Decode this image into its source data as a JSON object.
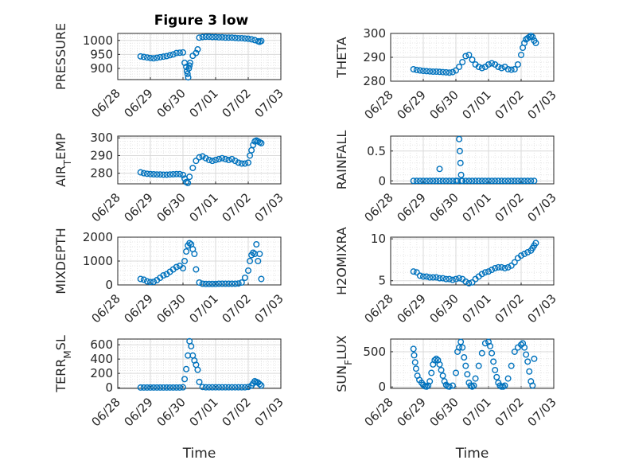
{
  "title": "Figure 3 low",
  "marker_color": "#0072BD",
  "chart_data": [
    {
      "type": "scatter",
      "ylabel": "PRESSURE",
      "xlabel": "",
      "ylim": [
        860,
        1025
      ],
      "yticks": [
        900,
        950,
        1000
      ],
      "ytick_labels": [
        "900",
        "950",
        "1000"
      ],
      "xlim": [
        0,
        5
      ],
      "xticks": [
        0,
        1,
        2,
        3,
        4,
        5
      ],
      "xtick_labels": [
        "06/28",
        "06/29",
        "06/30",
        "07/01",
        "07/02",
        "07/03"
      ],
      "x": [
        0.7,
        0.8,
        0.9,
        1.0,
        1.1,
        1.2,
        1.3,
        1.4,
        1.5,
        1.6,
        1.7,
        1.8,
        1.9,
        2.0,
        2.05,
        2.1,
        2.12,
        2.14,
        2.16,
        2.18,
        2.2,
        2.22,
        2.3,
        2.4,
        2.45,
        2.5,
        2.6,
        2.7,
        2.8,
        2.9,
        3.0,
        3.1,
        3.2,
        3.3,
        3.4,
        3.5,
        3.6,
        3.7,
        3.8,
        3.9,
        4.0,
        4.1,
        4.2,
        4.3,
        4.35,
        4.4
      ],
      "y": [
        943,
        941,
        939,
        937,
        936,
        938,
        940,
        942,
        944,
        947,
        950,
        955,
        956,
        957,
        920,
        905,
        890,
        880,
        868,
        900,
        910,
        920,
        945,
        955,
        968,
        1010,
        1012,
        1013,
        1013,
        1012,
        1012,
        1011,
        1011,
        1010,
        1010,
        1010,
        1009,
        1008,
        1008,
        1007,
        1006,
        1004,
        1001,
        997,
        995,
        998
      ]
    },
    {
      "type": "scatter",
      "ylabel": "THETA",
      "xlabel": "",
      "ylim": [
        280,
        300
      ],
      "yticks": [
        280,
        290,
        300
      ],
      "ytick_labels": [
        "280",
        "290",
        "300"
      ],
      "xlim": [
        0,
        5
      ],
      "xticks": [
        0,
        1,
        2,
        3,
        4,
        5
      ],
      "xtick_labels": [
        "06/28",
        "06/29",
        "06/30",
        "07/01",
        "07/02",
        "07/03"
      ],
      "x": [
        0.7,
        0.8,
        0.9,
        1.0,
        1.1,
        1.2,
        1.3,
        1.4,
        1.5,
        1.6,
        1.7,
        1.8,
        1.9,
        2.0,
        2.1,
        2.2,
        2.3,
        2.4,
        2.5,
        2.6,
        2.7,
        2.8,
        2.9,
        3.0,
        3.1,
        3.2,
        3.3,
        3.4,
        3.5,
        3.6,
        3.7,
        3.8,
        3.9,
        4.0,
        4.05,
        4.1,
        4.15,
        4.2,
        4.25,
        4.3,
        4.35,
        4.4,
        4.45
      ],
      "y": [
        285,
        284.7,
        284.5,
        284.3,
        284.2,
        284.1,
        284,
        284,
        283.9,
        283.8,
        283.7,
        283.6,
        283.8,
        284.5,
        286,
        288,
        290.5,
        291,
        289,
        287,
        286,
        285.5,
        286,
        287,
        287.5,
        287,
        286,
        285.5,
        286,
        285,
        284.8,
        285,
        287,
        291,
        294,
        296,
        297.5,
        298,
        298.5,
        299,
        298.5,
        297,
        296
      ]
    },
    {
      "type": "scatter",
      "ylabel": "AIR_TEMP",
      "xlabel": "",
      "ylim": [
        274,
        301
      ],
      "yticks": [
        280,
        290,
        300
      ],
      "ytick_labels": [
        "280",
        "290",
        "300"
      ],
      "xlim": [
        0,
        5
      ],
      "xticks": [
        0,
        1,
        2,
        3,
        4,
        5
      ],
      "xtick_labels": [
        "06/28",
        "06/29",
        "06/30",
        "07/01",
        "07/02",
        "07/03"
      ],
      "x": [
        0.7,
        0.8,
        0.9,
        1.0,
        1.1,
        1.2,
        1.3,
        1.4,
        1.5,
        1.6,
        1.7,
        1.8,
        1.9,
        2.0,
        2.05,
        2.1,
        2.15,
        2.2,
        2.3,
        2.4,
        2.5,
        2.6,
        2.7,
        2.8,
        2.9,
        3.0,
        3.1,
        3.2,
        3.3,
        3.4,
        3.5,
        3.6,
        3.7,
        3.8,
        3.9,
        4.0,
        4.05,
        4.1,
        4.15,
        4.2,
        4.25,
        4.3,
        4.35,
        4.4
      ],
      "y": [
        280.5,
        280,
        279.7,
        279.5,
        279.4,
        279.3,
        279.3,
        279.2,
        279.2,
        279.3,
        279.4,
        279.5,
        279.5,
        279,
        277,
        275,
        274.5,
        278,
        283,
        287,
        289,
        289.5,
        288.5,
        287.5,
        287,
        287.5,
        288,
        288.5,
        288,
        287.5,
        288,
        287,
        286,
        285.5,
        285.5,
        286,
        290,
        293,
        296,
        298,
        298.5,
        298,
        297.5,
        297
      ]
    },
    {
      "type": "scatter",
      "ylabel": "RAINFALL",
      "xlabel": "",
      "ylim": [
        -0.05,
        0.75
      ],
      "yticks": [
        0,
        0.5
      ],
      "ytick_labels": [
        "0",
        "0.5"
      ],
      "xlim": [
        0,
        5
      ],
      "xticks": [
        0,
        1,
        2,
        3,
        4,
        5
      ],
      "xtick_labels": [
        "06/28",
        "06/29",
        "06/30",
        "07/01",
        "07/02",
        "07/03"
      ],
      "x": [
        0.7,
        0.8,
        0.9,
        1.0,
        1.1,
        1.2,
        1.3,
        1.4,
        1.5,
        1.6,
        1.7,
        1.8,
        1.9,
        2.0,
        2.05,
        2.1,
        2.12,
        2.14,
        2.16,
        2.18,
        2.2,
        2.3,
        2.4,
        2.5,
        2.6,
        2.7,
        2.8,
        2.9,
        3.0,
        3.1,
        3.2,
        3.3,
        3.4,
        3.5,
        3.6,
        3.7,
        3.8,
        3.9,
        4.0,
        4.1,
        4.2,
        4.3,
        4.4,
        1.5
      ],
      "y": [
        0,
        0,
        0,
        0,
        0,
        0,
        0,
        0,
        0,
        0,
        0,
        0,
        0,
        0,
        0,
        0.7,
        0.5,
        0.3,
        0.1,
        0,
        0,
        0,
        0,
        0,
        0,
        0,
        0,
        0,
        0,
        0,
        0,
        0,
        0,
        0,
        0,
        0,
        0,
        0,
        0,
        0,
        0,
        0,
        0,
        0.2
      ]
    },
    {
      "type": "scatter",
      "ylabel": "MIXDEPTH",
      "xlabel": "",
      "ylim": [
        0,
        2000
      ],
      "yticks": [
        0,
        1000,
        2000
      ],
      "ytick_labels": [
        "0",
        "1000",
        "2000"
      ],
      "xlim": [
        0,
        5
      ],
      "xticks": [
        0,
        1,
        2,
        3,
        4,
        5
      ],
      "xtick_labels": [
        "06/28",
        "06/29",
        "06/30",
        "07/01",
        "07/02",
        "07/03"
      ],
      "x": [
        0.7,
        0.8,
        0.9,
        1.0,
        1.1,
        1.2,
        1.3,
        1.4,
        1.5,
        1.6,
        1.7,
        1.8,
        1.9,
        2.0,
        2.05,
        2.1,
        2.15,
        2.2,
        2.25,
        2.3,
        2.35,
        2.4,
        2.5,
        2.6,
        2.7,
        2.8,
        2.9,
        3.0,
        3.1,
        3.2,
        3.3,
        3.4,
        3.5,
        3.6,
        3.7,
        3.8,
        3.9,
        4.0,
        4.05,
        4.1,
        4.15,
        4.2,
        4.25,
        4.3,
        4.35,
        4.4
      ],
      "y": [
        250,
        220,
        150,
        120,
        130,
        200,
        300,
        400,
        450,
        550,
        650,
        750,
        800,
        700,
        1000,
        1400,
        1650,
        1750,
        1700,
        1500,
        1300,
        650,
        100,
        50,
        40,
        40,
        40,
        40,
        50,
        50,
        50,
        50,
        50,
        50,
        60,
        100,
        300,
        600,
        1000,
        1250,
        1350,
        1300,
        1700,
        1000,
        1300,
        250
      ]
    },
    {
      "type": "scatter",
      "ylabel": "H2OMIXRA",
      "xlabel": "",
      "ylim": [
        4.5,
        10.2
      ],
      "yticks": [
        5,
        10
      ],
      "ytick_labels": [
        "5",
        "10"
      ],
      "xlim": [
        0,
        5
      ],
      "xticks": [
        0,
        1,
        2,
        3,
        4,
        5
      ],
      "xtick_labels": [
        "06/28",
        "06/29",
        "06/30",
        "07/01",
        "07/02",
        "07/03"
      ],
      "x": [
        0.7,
        0.8,
        0.9,
        1.0,
        1.1,
        1.2,
        1.3,
        1.4,
        1.5,
        1.6,
        1.7,
        1.8,
        1.9,
        2.0,
        2.1,
        2.2,
        2.3,
        2.4,
        2.5,
        2.6,
        2.7,
        2.8,
        2.9,
        3.0,
        3.1,
        3.2,
        3.3,
        3.4,
        3.5,
        3.6,
        3.7,
        3.8,
        3.9,
        4.0,
        4.1,
        4.2,
        4.3,
        4.35,
        4.4,
        4.45
      ],
      "y": [
        6.1,
        6,
        5.6,
        5.5,
        5.5,
        5.4,
        5.4,
        5.4,
        5.3,
        5.3,
        5.2,
        5.2,
        5.1,
        5.2,
        5.3,
        5.2,
        4.9,
        4.7,
        4.8,
        5.2,
        5.5,
        5.8,
        6,
        6.1,
        6.3,
        6.5,
        6.6,
        6.6,
        6.5,
        6.6,
        6.8,
        7.2,
        7.7,
        8,
        8.2,
        8.4,
        8.6,
        8.9,
        9.2,
        9.5
      ]
    },
    {
      "type": "scatter",
      "ylabel": "TERR_MSL",
      "xlabel": "Time",
      "ylim": [
        -10,
        680
      ],
      "yticks": [
        0,
        200,
        400,
        600
      ],
      "ytick_labels": [
        "0",
        "200",
        "400",
        "600"
      ],
      "xlim": [
        0,
        5
      ],
      "xticks": [
        0,
        1,
        2,
        3,
        4,
        5
      ],
      "xtick_labels": [
        "06/28",
        "06/29",
        "06/30",
        "07/01",
        "07/02",
        "07/03"
      ],
      "x": [
        0.7,
        0.8,
        0.9,
        1.0,
        1.1,
        1.2,
        1.3,
        1.4,
        1.5,
        1.6,
        1.7,
        1.8,
        1.9,
        2.0,
        2.05,
        2.1,
        2.15,
        2.2,
        2.25,
        2.3,
        2.35,
        2.4,
        2.45,
        2.5,
        2.6,
        2.7,
        2.8,
        2.9,
        3.0,
        3.1,
        3.2,
        3.3,
        3.4,
        3.5,
        3.6,
        3.7,
        3.8,
        3.9,
        4.0,
        4.1,
        4.15,
        4.2,
        4.25,
        4.3,
        4.35,
        4.4
      ],
      "y": [
        2,
        2,
        2,
        2,
        2,
        2,
        2,
        2,
        2,
        2,
        2,
        2,
        2,
        5,
        120,
        260,
        450,
        650,
        580,
        450,
        380,
        320,
        250,
        80,
        10,
        5,
        5,
        5,
        5,
        5,
        5,
        5,
        5,
        5,
        5,
        5,
        5,
        5,
        10,
        30,
        60,
        90,
        80,
        70,
        50,
        30
      ]
    },
    {
      "type": "scatter",
      "ylabel": "SUN_FLUX",
      "xlabel": "Time",
      "ylim": [
        -20,
        680
      ],
      "yticks": [
        0,
        500
      ],
      "ytick_labels": [
        "0",
        "500"
      ],
      "xlim": [
        0,
        5
      ],
      "xticks": [
        0,
        1,
        2,
        3,
        4,
        5
      ],
      "xtick_labels": [
        "06/28",
        "06/29",
        "06/30",
        "07/01",
        "07/02",
        "07/03"
      ],
      "x": [
        0.7,
        0.72,
        0.75,
        0.78,
        0.82,
        0.88,
        0.95,
        1.0,
        1.05,
        1.1,
        1.15,
        1.2,
        1.25,
        1.3,
        1.35,
        1.4,
        1.45,
        1.5,
        1.55,
        1.6,
        1.65,
        1.7,
        1.75,
        1.8,
        1.9,
        2.0,
        2.05,
        2.1,
        2.15,
        2.2,
        2.25,
        2.3,
        2.35,
        2.4,
        2.45,
        2.5,
        2.55,
        2.6,
        2.7,
        2.8,
        2.9,
        3.0,
        3.05,
        3.1,
        3.15,
        3.2,
        3.25,
        3.3,
        3.35,
        3.4,
        3.45,
        3.5,
        3.6,
        3.7,
        3.8,
        3.9,
        4.0,
        4.05,
        4.1,
        4.15,
        4.2,
        4.25,
        4.3,
        4.35,
        4.4
      ],
      "y": [
        540,
        450,
        350,
        260,
        160,
        100,
        60,
        30,
        10,
        5,
        20,
        80,
        200,
        320,
        380,
        400,
        380,
        320,
        240,
        160,
        80,
        30,
        10,
        5,
        20,
        200,
        500,
        560,
        640,
        560,
        420,
        300,
        180,
        60,
        20,
        5,
        20,
        120,
        300,
        480,
        620,
        640,
        580,
        480,
        360,
        240,
        140,
        60,
        20,
        5,
        5,
        20,
        120,
        300,
        500,
        560,
        600,
        620,
        560,
        460,
        360,
        220,
        80,
        20,
        400
      ]
    }
  ]
}
